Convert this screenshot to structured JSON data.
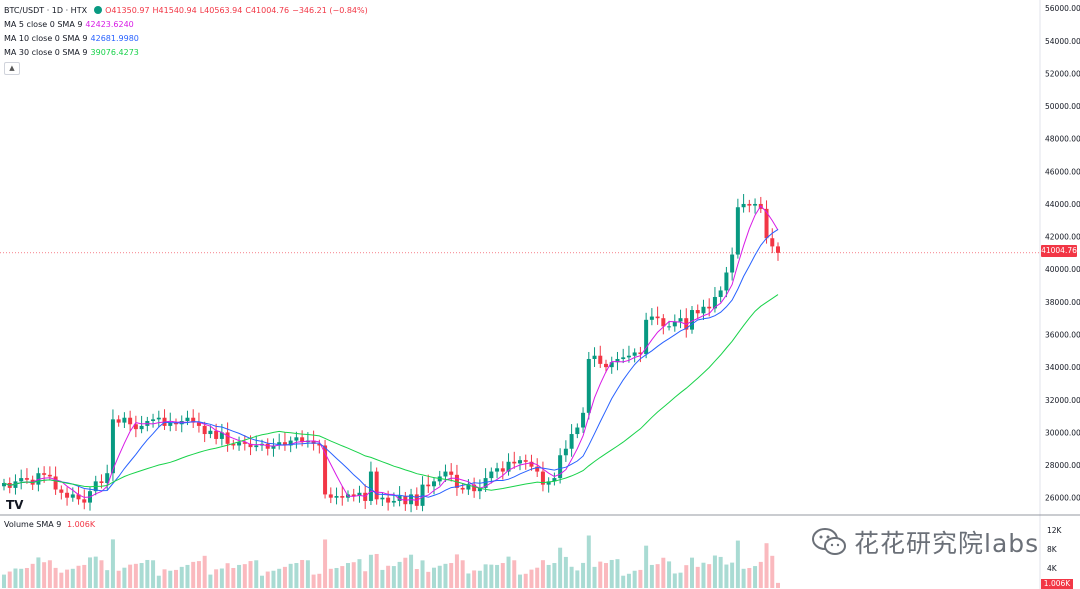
{
  "chart_data": {
    "type": "candlestick",
    "title": "BTC/USDT · 1D · HTX",
    "ohlc": {
      "o": "O41350.97",
      "h": "H41540.94",
      "l": "L40563.94",
      "c": "C41004.76",
      "chg": "−346.21 (−0.84%)"
    },
    "last_price": "41004.76",
    "ylim": [
      25000,
      56500
    ],
    "y_ticks": [
      "56000.00",
      "54000.00",
      "52000.00",
      "50000.00",
      "48000.00",
      "46000.00",
      "44000.00",
      "42000.00",
      "40000.00",
      "38000.00",
      "36000.00",
      "34000.00",
      "32000.00",
      "30000.00",
      "28000.00",
      "26000.00"
    ],
    "indicators": [
      {
        "label": "MA 5 close 0 SMA 9",
        "value": "42423.6240",
        "color": "#d81be6",
        "period": 5
      },
      {
        "label": "MA 10 close 0 SMA 9",
        "value": "42681.9980",
        "color": "#2962ff",
        "period": 10
      },
      {
        "label": "MA 30 close 0 SMA 9",
        "value": "39076.4273",
        "color": "#18d24a",
        "period": 30
      }
    ],
    "closes": [
      26900,
      26600,
      27000,
      27200,
      27100,
      26800,
      27500,
      27400,
      27300,
      26500,
      26300,
      26000,
      26200,
      25900,
      25700,
      26400,
      27000,
      26900,
      27500,
      30800,
      30600,
      30900,
      30500,
      30200,
      30400,
      30700,
      30800,
      30900,
      30400,
      30600,
      30500,
      30700,
      30900,
      30600,
      30400,
      29900,
      30100,
      29600,
      30000,
      29300,
      29200,
      29400,
      29300,
      29100,
      29200,
      29300,
      29000,
      29200,
      29400,
      29200,
      29500,
      29700,
      29400,
      29500,
      29300,
      29200,
      26200,
      26000,
      26100,
      26000,
      26200,
      26100,
      26300,
      25800,
      27600,
      25900,
      26000,
      25700,
      25800,
      26100,
      25600,
      26200,
      25500,
      26800,
      26700,
      27000,
      27300,
      27600,
      27400,
      26600,
      26500,
      26800,
      26400,
      26600,
      27200,
      27600,
      27800,
      27600,
      28200,
      28100,
      28300,
      28200,
      27900,
      27600,
      26800,
      27000,
      27200,
      28600,
      29000,
      29900,
      30300,
      31200,
      34500,
      34700,
      34200,
      34000,
      34300,
      34500,
      34600,
      34700,
      34900,
      34800,
      36900,
      37100,
      37000,
      36500,
      36500,
      36800,
      37000,
      36300,
      37500,
      37300,
      37700,
      37600,
      38300,
      38700,
      39800,
      40900,
      43800,
      44000,
      43900,
      44000,
      43700,
      41900,
      41400,
      41004.76
    ],
    "volume": {
      "label": "Volume SMA 9",
      "value": "1.006K",
      "ticks": [
        "12K",
        "8K",
        "4K"
      ],
      "last": "1.006K"
    }
  },
  "watermark": {
    "text": "花花研究院labs"
  },
  "logo": {
    "text": "TV"
  }
}
